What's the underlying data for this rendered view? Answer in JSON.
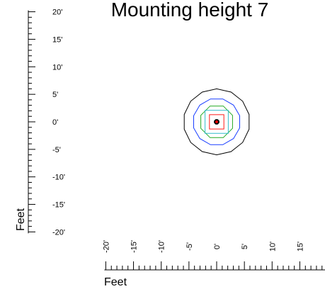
{
  "chart_data": {
    "type": "contour",
    "title": "Mounting height 7",
    "xlabel": "Feet",
    "ylabel": "Feet",
    "xlim": [
      -20,
      20
    ],
    "ylim": [
      -20,
      20
    ],
    "xticks": [
      {
        "value": -20,
        "label": "-20'"
      },
      {
        "value": -15,
        "label": "-15'"
      },
      {
        "value": -10,
        "label": "-10'"
      },
      {
        "value": -5,
        "label": "-5'"
      },
      {
        "value": 0,
        "label": "0'"
      },
      {
        "value": 5,
        "label": "5'"
      },
      {
        "value": 10,
        "label": "10'"
      },
      {
        "value": 15,
        "label": "15'"
      }
    ],
    "yticks": [
      {
        "value": 20,
        "label": "20'"
      },
      {
        "value": 15,
        "label": "15'"
      },
      {
        "value": 10,
        "label": "10'"
      },
      {
        "value": 5,
        "label": "5'"
      },
      {
        "value": 0,
        "label": "0'"
      },
      {
        "value": -5,
        "label": "-5'"
      },
      {
        "value": -10,
        "label": "-10'"
      },
      {
        "value": -15,
        "label": "-15'"
      },
      {
        "value": -20,
        "label": "-20'"
      }
    ],
    "center": [
      0,
      0
    ],
    "contours": [
      {
        "color": "#000000",
        "radius": 6.0,
        "sides": 14
      },
      {
        "color": "#1a3fff",
        "radius": 4.3,
        "sides": 12
      },
      {
        "color": "#22aa22",
        "radius": 3.1,
        "sides": 8
      },
      {
        "color": "#33bbcc",
        "radius": 2.1,
        "sides": 4
      },
      {
        "color": "#ff1a1a",
        "radius": 1.3,
        "sides": 4
      },
      {
        "color": "#000000",
        "radius": 0.45,
        "sides": 8
      }
    ],
    "marker": {
      "color": "#ff0000",
      "x": 0,
      "y": 0
    }
  }
}
